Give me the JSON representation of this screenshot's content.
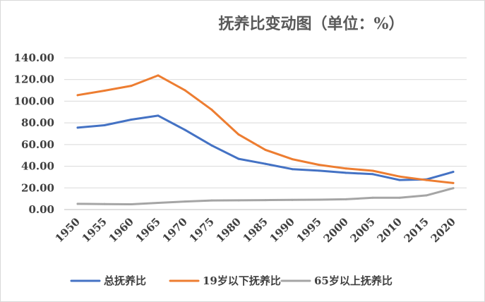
{
  "chart_data": {
    "type": "line",
    "title": "抚养比变动图（单位：%）",
    "xlabel": "",
    "ylabel": "",
    "x": [
      "1950",
      "1955",
      "1960",
      "1965",
      "1970",
      "1975",
      "1980",
      "1985",
      "1990",
      "1995",
      "2000",
      "2005",
      "2010",
      "2015",
      "2020"
    ],
    "ylim": [
      0,
      140
    ],
    "yticks": [
      "0.00",
      "20.00",
      "40.00",
      "60.00",
      "80.00",
      "100.00",
      "120.00",
      "140.00"
    ],
    "grid": true,
    "legend_position": "bottom",
    "series": [
      {
        "name": "总抚养比",
        "color": "#4472C4",
        "values": [
          75.6,
          77.8,
          83.0,
          86.7,
          73.5,
          59.1,
          46.8,
          42.2,
          37.3,
          35.9,
          33.9,
          32.7,
          27.3,
          27.8,
          34.8
        ]
      },
      {
        "name": "19岁以下抚养比",
        "color": "#ED7D31",
        "values": [
          105.6,
          109.7,
          114.2,
          123.8,
          110.1,
          92.1,
          69.3,
          55.1,
          46.5,
          41.3,
          37.9,
          35.8,
          30.5,
          27.2,
          24.5
        ]
      },
      {
        "name": "65岁以上抚养比",
        "color": "#A5A5A5",
        "values": [
          5.3,
          5.1,
          4.9,
          6.2,
          7.4,
          8.4,
          8.5,
          8.7,
          8.9,
          9.1,
          9.5,
          10.9,
          10.9,
          13.1,
          19.7
        ]
      }
    ]
  }
}
